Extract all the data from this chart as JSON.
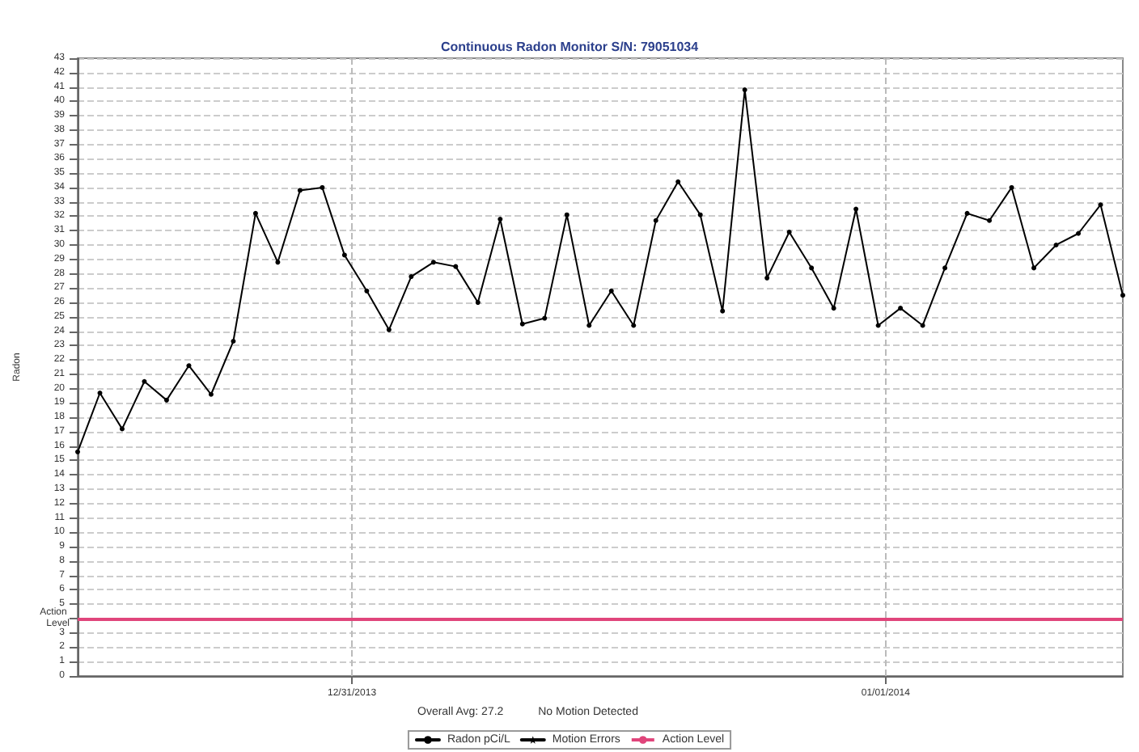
{
  "chart_data": {
    "type": "line",
    "title": "Continuous Radon Monitor S/N: 79051034",
    "ylabel": "Radon",
    "x": [
      "2013-12-30T11:40",
      "2013-12-30T12:40",
      "2013-12-30T13:40",
      "2013-12-30T14:40",
      "2013-12-30T15:40",
      "2013-12-30T16:40",
      "2013-12-30T17:40",
      "2013-12-30T18:40",
      "2013-12-30T19:40",
      "2013-12-30T20:40",
      "2013-12-30T21:40",
      "2013-12-30T22:40",
      "2013-12-30T23:40",
      "2013-12-31T00:40",
      "2013-12-31T01:40",
      "2013-12-31T02:40",
      "2013-12-31T03:40",
      "2013-12-31T04:40",
      "2013-12-31T05:40",
      "2013-12-31T06:40",
      "2013-12-31T07:40",
      "2013-12-31T08:40",
      "2013-12-31T09:40",
      "2013-12-31T10:40",
      "2013-12-31T11:40",
      "2013-12-31T12:40",
      "2013-12-31T13:40",
      "2013-12-31T14:40",
      "2013-12-31T15:40",
      "2013-12-31T16:40",
      "2013-12-31T17:40",
      "2013-12-31T18:40",
      "2013-12-31T19:40",
      "2013-12-31T20:40",
      "2013-12-31T21:40",
      "2013-12-31T22:40",
      "2013-12-31T23:40",
      "2014-01-01T00:40",
      "2014-01-01T01:40",
      "2014-01-01T02:40",
      "2014-01-01T03:40",
      "2014-01-01T04:40",
      "2014-01-01T05:40",
      "2014-01-01T06:40",
      "2014-01-01T07:40",
      "2014-01-01T08:40",
      "2014-01-01T09:40",
      "2014-01-01T10:40"
    ],
    "series": [
      {
        "name": "Radon pCi/L",
        "color": "#000000",
        "marker": "circle",
        "values": [
          15.6,
          19.7,
          17.2,
          20.5,
          19.2,
          21.6,
          19.6,
          23.3,
          32.2,
          28.8,
          33.8,
          34.0,
          29.3,
          26.8,
          24.1,
          27.8,
          28.8,
          28.5,
          26.0,
          31.8,
          24.5,
          24.9,
          32.1,
          24.4,
          26.8,
          24.4,
          31.7,
          34.4,
          32.1,
          25.4,
          40.8,
          27.7,
          30.9,
          28.4,
          25.6,
          32.5,
          24.4,
          25.6,
          24.4,
          28.4,
          32.2,
          31.7,
          34.0,
          28.4,
          30.0,
          30.8,
          32.8,
          26.5
        ]
      },
      {
        "name": "Motion Errors",
        "color": "#000000",
        "marker": "star",
        "values": [
          null,
          null,
          null,
          null,
          null,
          null,
          null,
          null,
          null,
          null,
          null,
          null,
          null,
          null,
          null,
          null,
          null,
          null,
          null,
          null,
          null,
          null,
          null,
          null,
          null,
          null,
          null,
          null,
          null,
          null,
          null,
          null,
          null,
          null,
          null,
          null,
          null,
          null,
          null,
          null,
          null,
          null,
          null,
          null,
          null,
          null,
          null,
          null
        ]
      }
    ],
    "xlim": [
      "2013-12-30T11:40",
      "2014-01-01T10:40"
    ],
    "xticks": [
      {
        "value": "2013-12-31T00:00",
        "label": "12/31/2013"
      },
      {
        "value": "2014-01-01T00:00",
        "label": "01/01/2014"
      }
    ],
    "ylim": [
      0,
      43
    ],
    "yticks": [
      0,
      1,
      2,
      3,
      {
        "value": 4,
        "label": null
      },
      5,
      6,
      7,
      8,
      9,
      10,
      11,
      12,
      13,
      14,
      15,
      16,
      17,
      18,
      19,
      20,
      21,
      22,
      23,
      24,
      25,
      26,
      27,
      28,
      29,
      30,
      31,
      32,
      33,
      34,
      35,
      36,
      37,
      38,
      39,
      40,
      41,
      42,
      43
    ],
    "ref_lines": [
      {
        "axis": "y",
        "value": 4,
        "label": "Action Level",
        "color": "#e0457b"
      }
    ],
    "annotations": [
      "Overall Avg: 27.2",
      "No Motion Detected"
    ],
    "grid": true,
    "legend": "bottom",
    "line_style": "solid"
  }
}
